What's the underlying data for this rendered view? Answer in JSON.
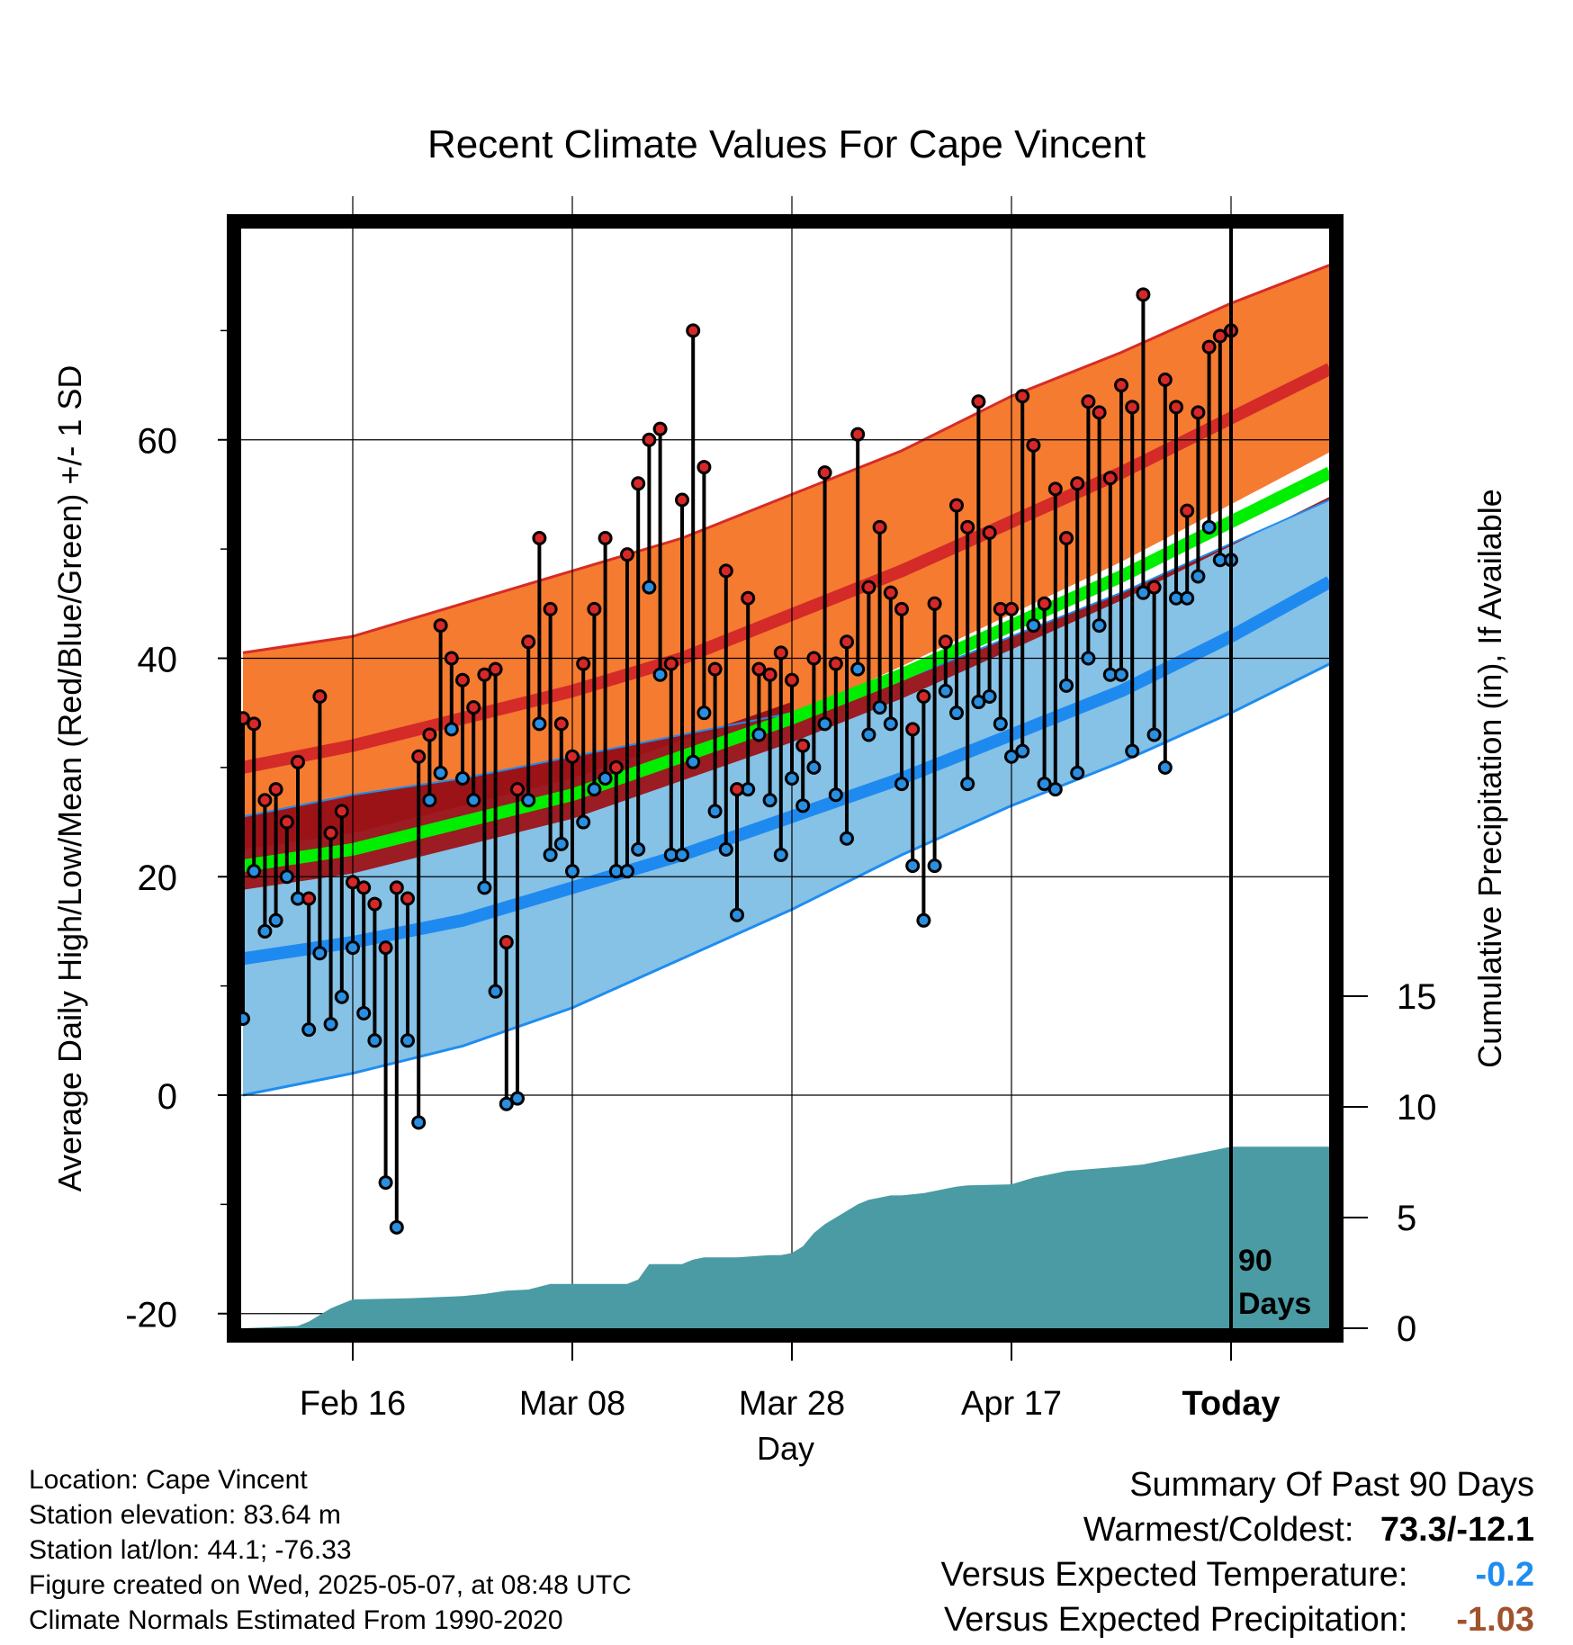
{
  "chart_data": {
    "type": "line",
    "title": "Recent Climate Values For Cape Vincent",
    "xlabel": "Day",
    "ylabel": "Average Daily High/Low/Mean (Red/Blue/Green) +/- 1 SD",
    "y2label": "Cumulative Precipitation (in), If Available",
    "ylim": [
      -22,
      80
    ],
    "y2lim": [
      0,
      18
    ],
    "xlim": [
      0,
      99
    ],
    "yticks": [
      -20,
      0,
      20,
      40,
      60
    ],
    "y2ticks": [
      0,
      5,
      10,
      15
    ],
    "xticks": [
      {
        "day": 10,
        "label": "Feb 16"
      },
      {
        "day": 30,
        "label": "Mar 08"
      },
      {
        "day": 50,
        "label": "Mar 28"
      },
      {
        "day": 70,
        "label": "Apr 17"
      },
      {
        "day": 90,
        "label": "Today"
      }
    ],
    "today_marker": {
      "day": 90,
      "label_line1": "90",
      "label_line2": "Days"
    },
    "grid": true,
    "colors": {
      "high_band": "#f47b30",
      "high_band_edge": "#d62c26",
      "high_mean": "#d42a28",
      "low_band": "#86c1e6",
      "low_band_edge": "#1e8df0",
      "low_mean": "#1e8af0",
      "overlap": "#9c1317",
      "mean_line": "#00ee00",
      "precip": "#4a9ba4",
      "high_marker": "#d62828",
      "low_marker": "#2a8fe0"
    },
    "normals": {
      "x": [
        0,
        10,
        20,
        30,
        40,
        50,
        60,
        70,
        80,
        90,
        99
      ],
      "high_upper": [
        40.5,
        42,
        45,
        48,
        51,
        55,
        59,
        64,
        68,
        72.5,
        76
      ],
      "high_mean": [
        30,
        32,
        34.5,
        37,
        40,
        44,
        48,
        52.5,
        57,
        62,
        66.5
      ],
      "low_upper": [
        25.5,
        27.5,
        29,
        31,
        33,
        35,
        38,
        42,
        46,
        50.5,
        54.5
      ],
      "low_mean": [
        12.5,
        14,
        16,
        19,
        22,
        25.5,
        29,
        33,
        37,
        42,
        47
      ],
      "low_lower": [
        0,
        2,
        4.5,
        8,
        12.5,
        17,
        22,
        26.5,
        30.5,
        35,
        39.5
      ],
      "mean": [
        21,
        22.5,
        25,
        27.5,
        31,
        34.5,
        38.5,
        43,
        47.5,
        52.5,
        57
      ]
    },
    "series": [
      {
        "name": "High",
        "x": [
          0,
          1,
          2,
          3,
          4,
          5,
          6,
          7,
          8,
          9,
          10,
          11,
          12,
          13,
          14,
          15,
          16,
          17,
          18,
          19,
          20,
          21,
          22,
          23,
          24,
          25,
          26,
          27,
          28,
          29,
          30,
          31,
          32,
          33,
          34,
          35,
          36,
          37,
          38,
          39,
          40,
          41,
          42,
          43,
          44,
          45,
          46,
          47,
          48,
          49,
          50,
          51,
          52,
          53,
          54,
          55,
          56,
          57,
          58,
          59,
          60,
          61,
          62,
          63,
          64,
          65,
          66,
          67,
          68,
          69,
          70,
          71,
          72,
          73,
          74,
          75,
          76,
          77,
          78,
          79,
          80,
          81,
          82,
          83,
          84,
          85,
          86,
          87,
          88,
          89,
          90
        ],
        "values": [
          34.5,
          34,
          27,
          28,
          25,
          30.5,
          18,
          36.5,
          24,
          26,
          19.5,
          19,
          17.5,
          13.5,
          19,
          18,
          31,
          33,
          43,
          40,
          38,
          35.5,
          38.5,
          39,
          14,
          28,
          41.5,
          51,
          44.5,
          34,
          31,
          39.5,
          44.5,
          51,
          30,
          49.5,
          56,
          60,
          61,
          39.5,
          54.5,
          70,
          57.5,
          39,
          48,
          28,
          45.5,
          39,
          38.5,
          40.5,
          38,
          32,
          40,
          57,
          39.5,
          41.5,
          60.5,
          46.5,
          52,
          46,
          44.5,
          33.5,
          36.5,
          45,
          41.5,
          54,
          52,
          63.5,
          51.5,
          44.5,
          44.5,
          64,
          59.5,
          45,
          55.5,
          51,
          56,
          63.5,
          62.5,
          56.5,
          65,
          63,
          73.3,
          46.5,
          65.5,
          63,
          53.5,
          62.5,
          68.5,
          69.5,
          70
        ]
      },
      {
        "name": "Low",
        "x": [
          0,
          1,
          2,
          3,
          4,
          5,
          6,
          7,
          8,
          9,
          10,
          11,
          12,
          13,
          14,
          15,
          16,
          17,
          18,
          19,
          20,
          21,
          22,
          23,
          24,
          25,
          26,
          27,
          28,
          29,
          30,
          31,
          32,
          33,
          34,
          35,
          36,
          37,
          38,
          39,
          40,
          41,
          42,
          43,
          44,
          45,
          46,
          47,
          48,
          49,
          50,
          51,
          52,
          53,
          54,
          55,
          56,
          57,
          58,
          59,
          60,
          61,
          62,
          63,
          64,
          65,
          66,
          67,
          68,
          69,
          70,
          71,
          72,
          73,
          74,
          75,
          76,
          77,
          78,
          79,
          80,
          81,
          82,
          83,
          84,
          85,
          86,
          87,
          88,
          89,
          90
        ],
        "values": [
          7,
          20.5,
          15,
          16,
          20,
          18,
          6,
          13,
          6.5,
          9,
          13.5,
          7.5,
          5,
          -8,
          -12.1,
          5,
          -2.5,
          27,
          29.5,
          33.5,
          29,
          27,
          19,
          9.5,
          -0.8,
          -0.3,
          27,
          34,
          22,
          23,
          20.5,
          25,
          28,
          29,
          20.5,
          20.5,
          22.5,
          46.5,
          38.5,
          22,
          22,
          30.5,
          35,
          26,
          22.5,
          16.5,
          28,
          33,
          27,
          22,
          29,
          26.5,
          30,
          34,
          27.5,
          23.5,
          39,
          33,
          35.5,
          34,
          28.5,
          21,
          16,
          21,
          37,
          35,
          28.5,
          36,
          36.5,
          34,
          31,
          31.5,
          43,
          28.5,
          28,
          37.5,
          29.5,
          40,
          43,
          38.5,
          38.5,
          31.5,
          46,
          33,
          30,
          45.5,
          45.5,
          47.5,
          52,
          49,
          49
        ]
      },
      {
        "name": "Cumulative Precipitation",
        "x": [
          0,
          5,
          6,
          7,
          8,
          9,
          10,
          15,
          20,
          22,
          24,
          26,
          28,
          30,
          35,
          36,
          37,
          40,
          41,
          42,
          45,
          48,
          49,
          50,
          51,
          52,
          53,
          54,
          55,
          56,
          57,
          58,
          59,
          60,
          62,
          63,
          64,
          65,
          66,
          70,
          72,
          73,
          74,
          75,
          80,
          82,
          83,
          84,
          85,
          86,
          87,
          88,
          89,
          90,
          99
        ],
        "values": [
          0,
          0.1,
          0.3,
          0.6,
          0.9,
          1.1,
          1.3,
          1.35,
          1.45,
          1.55,
          1.7,
          1.75,
          2,
          2,
          2,
          2.2,
          2.9,
          2.9,
          3.1,
          3.2,
          3.2,
          3.3,
          3.3,
          3.4,
          3.7,
          4.3,
          4.7,
          5.0,
          5.3,
          5.6,
          5.8,
          5.9,
          6.0,
          6.0,
          6.1,
          6.2,
          6.3,
          6.4,
          6.45,
          6.5,
          6.8,
          6.9,
          7.0,
          7.1,
          7.3,
          7.4,
          7.5,
          7.6,
          7.7,
          7.8,
          7.9,
          8.0,
          8.1,
          8.2,
          8.2
        ]
      }
    ]
  },
  "footer": {
    "location": "Location: Cape Vincent",
    "elevation": "Station elevation: 83.64 m",
    "latlon": "Station lat/lon: 44.1; -76.33",
    "created": "Figure created on Wed, 2025-05-07, at 08:48 UTC",
    "normals": "Climate Normals Estimated From 1990-2020"
  },
  "summary": {
    "title": "Summary Of Past 90 Days",
    "warmest_label": "Warmest/Coldest:",
    "warmest_value": "73.3/-12.1",
    "temp_label": "Versus Expected Temperature:",
    "temp_value": "-0.2",
    "temp_color": "#1e8df0",
    "precip_label": "Versus Expected Precipitation:",
    "precip_value": "-1.03",
    "precip_color": "#a0522d"
  }
}
